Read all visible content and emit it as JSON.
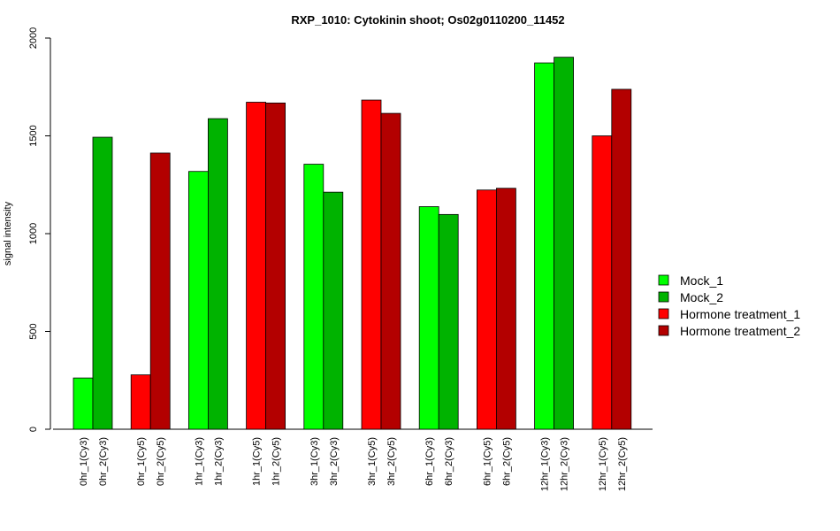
{
  "chart_data": {
    "type": "bar",
    "title": "RXP_1010: Cytokinin shoot; Os02g0110200_11452",
    "ylabel": "signal intensity",
    "xlabel": "",
    "ylim": [
      0,
      2000
    ],
    "yticks": [
      0,
      500,
      1000,
      1500,
      2000
    ],
    "categories": [
      "0hr_1(Cy3)",
      "0hr_2(Cy3)",
      "0hr_1(Cy5)",
      "0hr_2(Cy5)",
      "1hr_1(Cy3)",
      "1hr_2(Cy3)",
      "1hr_1(Cy5)",
      "1hr_2(Cy5)",
      "3hr_1(Cy3)",
      "3hr_2(Cy3)",
      "3hr_1(Cy5)",
      "3hr_2(Cy5)",
      "6hr_1(Cy3)",
      "6hr_2(Cy3)",
      "6hr_1(Cy5)",
      "6hr_2(Cy5)",
      "12hr_1(Cy3)",
      "12hr_2(Cy3)",
      "12hr_1(Cy5)",
      "12hr_2(Cy5)"
    ],
    "values": [
      262,
      1493,
      278,
      1412,
      1318,
      1588,
      1672,
      1668,
      1355,
      1212,
      1683,
      1615,
      1138,
      1098,
      1223,
      1232,
      1873,
      1902,
      1500,
      1738
    ],
    "series_index": [
      0,
      1,
      2,
      3,
      0,
      1,
      2,
      3,
      0,
      1,
      2,
      3,
      0,
      1,
      2,
      3,
      0,
      1,
      2,
      3
    ],
    "legend": [
      {
        "name": "Mock_1",
        "color": "#00ff00"
      },
      {
        "name": "Mock_2",
        "color": "#00b300"
      },
      {
        "name": "Hormone treatment_1",
        "color": "#ff0000"
      },
      {
        "name": "Hormone treatment_2",
        "color": "#b30000"
      }
    ],
    "legend_position": "right",
    "grid": false
  }
}
